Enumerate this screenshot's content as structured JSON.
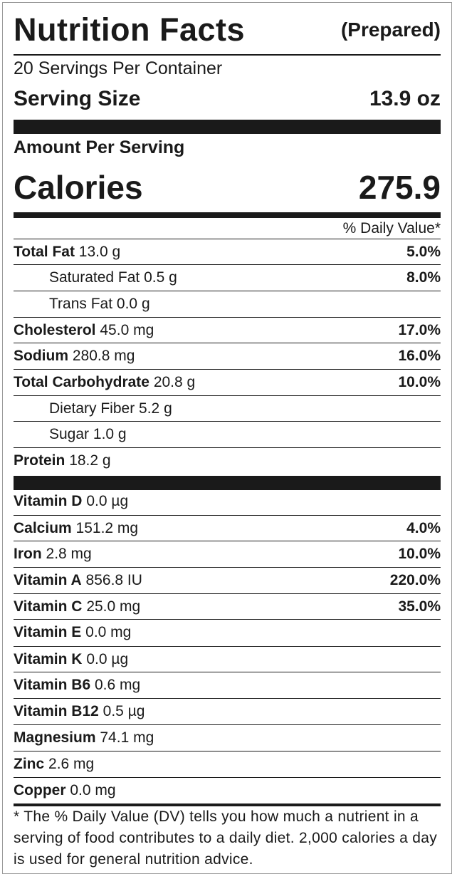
{
  "title": "Nutrition Facts",
  "title_suffix": "(Prepared)",
  "servings_per_container": "20 Servings Per Container",
  "serving_size_label": "Serving Size",
  "serving_size_value": "13.9 oz",
  "amount_per_serving": "Amount Per Serving",
  "calories_label": "Calories",
  "calories_value": "275.9",
  "daily_value_header": "% Daily Value*",
  "nutrients": [
    {
      "name": "Total Fat",
      "amount": "13.0 g",
      "dv": "5.0%"
    },
    {
      "name": "Saturated Fat",
      "amount": "0.5 g",
      "dv": "8.0%"
    },
    {
      "name": "Trans Fat",
      "amount": "0.0 g",
      "dv": ""
    },
    {
      "name": "Cholesterol",
      "amount": "45.0 mg",
      "dv": "17.0%"
    },
    {
      "name": "Sodium",
      "amount": "280.8 mg",
      "dv": "16.0%"
    },
    {
      "name": "Total Carbohydrate",
      "amount": "20.8 g",
      "dv": "10.0%"
    },
    {
      "name": "Dietary Fiber",
      "amount": "5.2 g",
      "dv": ""
    },
    {
      "name": "Sugar",
      "amount": "1.0 g",
      "dv": ""
    },
    {
      "name": "Protein",
      "amount": "18.2 g",
      "dv": ""
    }
  ],
  "vitamins": [
    {
      "name": "Vitamin D",
      "amount": "0.0 µg",
      "dv": ""
    },
    {
      "name": "Calcium",
      "amount": "151.2 mg",
      "dv": "4.0%"
    },
    {
      "name": "Iron",
      "amount": "2.8 mg",
      "dv": "10.0%"
    },
    {
      "name": "Vitamin A",
      "amount": "856.8 IU",
      "dv": "220.0%"
    },
    {
      "name": "Vitamin C",
      "amount": "25.0 mg",
      "dv": "35.0%"
    },
    {
      "name": "Vitamin E",
      "amount": "0.0 mg",
      "dv": ""
    },
    {
      "name": "Vitamin K",
      "amount": "0.0 µg",
      "dv": ""
    },
    {
      "name": "Vitamin B6",
      "amount": "0.6 mg",
      "dv": ""
    },
    {
      "name": "Vitamin B12",
      "amount": "0.5 µg",
      "dv": ""
    },
    {
      "name": "Magnesium",
      "amount": "74.1 mg",
      "dv": ""
    },
    {
      "name": "Zinc",
      "amount": "2.6 mg",
      "dv": ""
    },
    {
      "name": "Copper",
      "amount": "0.0 mg",
      "dv": ""
    }
  ],
  "footnote": "* The % Daily Value (DV) tells you how much a nutrient in a serving of food contributes to a daily diet. 2,000 calories a day is used for general nutrition advice."
}
